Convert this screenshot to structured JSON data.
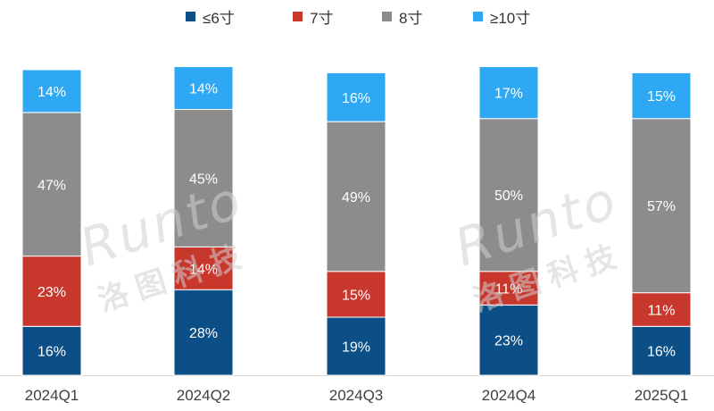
{
  "legend": {
    "items": [
      {
        "label": "≤6寸",
        "color": "#0b4f86"
      },
      {
        "label": "7寸",
        "color": "#c8372c"
      },
      {
        "label": "8寸",
        "color": "#8c8c8c"
      },
      {
        "label": "≥10寸",
        "color": "#2ea8f2"
      }
    ]
  },
  "watermark": {
    "latin": "Runto",
    "cjk": "洛图科技"
  },
  "chart_data": {
    "type": "bar",
    "stacked": true,
    "orientation": "vertical",
    "categories": [
      "2024Q1",
      "2024Q2",
      "2024Q3",
      "2024Q4",
      "2025Q1"
    ],
    "series": [
      {
        "name": "≤6寸",
        "color": "#0b4f86",
        "values": [
          16,
          28,
          19,
          23,
          16
        ]
      },
      {
        "name": "7寸",
        "color": "#c8372c",
        "values": [
          23,
          14,
          15,
          11,
          11
        ]
      },
      {
        "name": "8寸",
        "color": "#8c8c8c",
        "values": [
          47,
          45,
          49,
          50,
          57
        ]
      },
      {
        "name": "≥10寸",
        "color": "#2ea8f2",
        "values": [
          14,
          14,
          16,
          17,
          15
        ]
      }
    ],
    "value_suffix": "%",
    "ylim": [
      0,
      100
    ],
    "grid": false,
    "legend_position": "top",
    "title": "",
    "xlabel": "",
    "ylabel": ""
  }
}
